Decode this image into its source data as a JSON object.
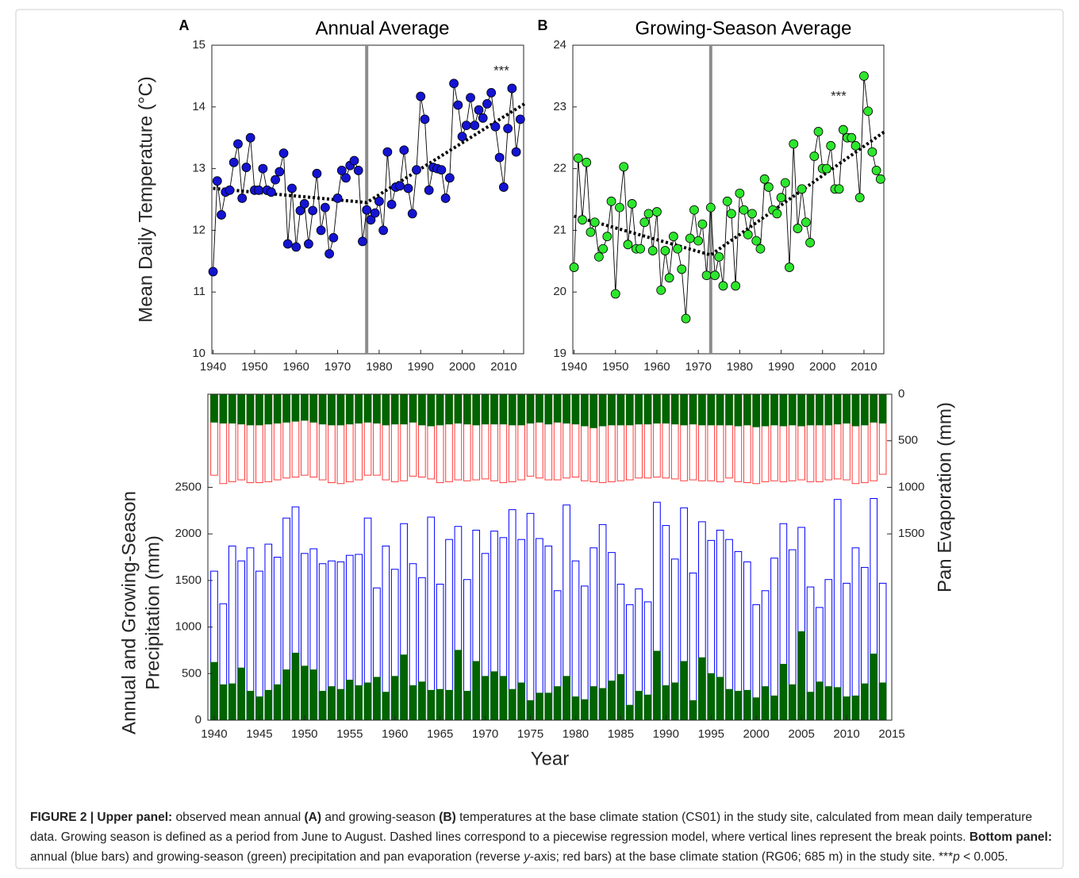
{
  "chart_data": [
    {
      "type": "line",
      "panel": "A",
      "title": "Annual Average",
      "ylabel": "Mean Daily Temperature (°C)",
      "x": [
        1940,
        1941,
        1942,
        1943,
        1944,
        1945,
        1946,
        1947,
        1948,
        1949,
        1950,
        1951,
        1952,
        1953,
        1954,
        1955,
        1956,
        1957,
        1958,
        1959,
        1960,
        1961,
        1962,
        1963,
        1964,
        1965,
        1966,
        1967,
        1968,
        1969,
        1970,
        1971,
        1972,
        1973,
        1974,
        1975,
        1976,
        1977,
        1978,
        1979,
        1980,
        1981,
        1982,
        1983,
        1984,
        1985,
        1986,
        1987,
        1988,
        1989,
        1990,
        1991,
        1992,
        1993,
        1994,
        1995,
        1996,
        1997,
        1998,
        1999,
        2000,
        2001,
        2002,
        2003,
        2004,
        2005,
        2006,
        2007,
        2008,
        2009,
        2010,
        2011,
        2012,
        2013,
        2014
      ],
      "values": [
        11.33,
        12.8,
        12.25,
        12.62,
        12.65,
        13.1,
        13.4,
        12.52,
        13.02,
        13.5,
        12.65,
        12.65,
        13.0,
        12.65,
        12.62,
        12.82,
        12.95,
        13.25,
        11.78,
        12.68,
        11.73,
        12.32,
        12.43,
        11.78,
        12.32,
        12.92,
        12.0,
        12.37,
        11.62,
        11.88,
        12.52,
        12.97,
        12.85,
        13.05,
        13.13,
        12.97,
        11.82,
        12.33,
        12.17,
        12.28,
        12.47,
        12.0,
        13.27,
        12.42,
        12.7,
        12.72,
        13.3,
        12.68,
        12.27,
        12.98,
        14.17,
        13.8,
        12.65,
        13.02,
        13.0,
        12.98,
        12.52,
        12.85,
        14.38,
        14.03,
        13.52,
        13.7,
        14.15,
        13.7,
        13.95,
        13.82,
        14.05,
        14.23,
        13.68,
        13.18,
        12.7,
        13.65,
        14.3,
        13.27,
        13.8
      ],
      "color": "#1414d2",
      "line_color": "#000000",
      "xlim": [
        1939.7,
        2014.8
      ],
      "xticks": [
        1940,
        1950,
        1960,
        1970,
        1980,
        1990,
        2000,
        2010
      ],
      "ylim": [
        10,
        15
      ],
      "yticks": [
        10,
        11,
        12,
        13,
        14,
        15
      ],
      "trend": {
        "x": [
          1940,
          1977,
          2015
        ],
        "values": [
          12.68,
          12.45,
          14.05
        ],
        "color": "#000000"
      },
      "break_x": 1977,
      "break_color": "#8c8c8c",
      "annotation": "***"
    },
    {
      "type": "line",
      "panel": "B",
      "title": "Growing-Season Average",
      "x": [
        1940,
        1941,
        1942,
        1943,
        1944,
        1945,
        1946,
        1947,
        1948,
        1949,
        1950,
        1951,
        1952,
        1953,
        1954,
        1955,
        1956,
        1957,
        1958,
        1959,
        1960,
        1961,
        1962,
        1963,
        1964,
        1965,
        1966,
        1967,
        1968,
        1969,
        1970,
        1971,
        1972,
        1973,
        1974,
        1975,
        1976,
        1977,
        1978,
        1979,
        1980,
        1981,
        1982,
        1983,
        1984,
        1985,
        1986,
        1987,
        1988,
        1989,
        1990,
        1991,
        1992,
        1993,
        1994,
        1995,
        1996,
        1997,
        1998,
        1999,
        2000,
        2001,
        2002,
        2003,
        2004,
        2005,
        2006,
        2007,
        2008,
        2009,
        2010,
        2011,
        2012,
        2013,
        2014
      ],
      "values": [
        20.4,
        22.17,
        21.17,
        22.1,
        20.97,
        21.13,
        20.57,
        20.7,
        20.9,
        21.47,
        19.97,
        21.37,
        22.03,
        20.77,
        21.43,
        20.7,
        20.7,
        21.13,
        21.27,
        20.67,
        21.3,
        20.03,
        20.67,
        20.23,
        20.9,
        20.7,
        20.37,
        19.57,
        20.87,
        21.33,
        20.83,
        21.1,
        20.27,
        21.37,
        20.27,
        20.57,
        20.1,
        21.47,
        21.27,
        20.1,
        21.6,
        21.33,
        20.93,
        21.27,
        20.83,
        20.7,
        21.83,
        21.7,
        21.33,
        21.27,
        21.53,
        21.77,
        20.4,
        22.4,
        21.03,
        21.67,
        21.13,
        20.8,
        22.2,
        22.6,
        22.0,
        22.0,
        22.37,
        21.67,
        21.67,
        22.63,
        22.5,
        22.5,
        22.37,
        21.53,
        23.5,
        22.93,
        22.27,
        21.97,
        21.83
      ],
      "color": "#2ee62e",
      "line_color": "#000000",
      "xlim": [
        1939.7,
        2014.8
      ],
      "xticks": [
        1940,
        1950,
        1960,
        1970,
        1980,
        1990,
        2000,
        2010
      ],
      "ylim": [
        19,
        24
      ],
      "yticks": [
        19,
        20,
        21,
        22,
        23,
        24
      ],
      "trend": {
        "x": [
          1940,
          1973,
          2015
        ],
        "values": [
          21.23,
          20.6,
          22.6
        ],
        "color": "#000000"
      },
      "break_x": 1973,
      "break_color": "#8c8c8c",
      "annotation": "***"
    },
    {
      "type": "bar",
      "ylabel": [
        "Annual and Growing-Season",
        "Precipitation (mm)"
      ],
      "y2label": "Pan Evaporation (mm)",
      "xlabel": "Year",
      "x": [
        1940,
        1941,
        1942,
        1943,
        1944,
        1945,
        1946,
        1947,
        1948,
        1949,
        1950,
        1951,
        1952,
        1953,
        1954,
        1955,
        1956,
        1957,
        1958,
        1959,
        1960,
        1961,
        1962,
        1963,
        1964,
        1965,
        1966,
        1967,
        1968,
        1969,
        1970,
        1971,
        1972,
        1973,
        1974,
        1975,
        1976,
        1977,
        1978,
        1979,
        1980,
        1981,
        1982,
        1983,
        1984,
        1985,
        1986,
        1987,
        1988,
        1989,
        1990,
        1991,
        1992,
        1993,
        1994,
        1995,
        1996,
        1997,
        1998,
        1999,
        2000,
        2001,
        2002,
        2003,
        2004,
        2005,
        2006,
        2007,
        2008,
        2009,
        2010,
        2011,
        2012,
        2013,
        2014
      ],
      "xlim": [
        1939.3,
        2015
      ],
      "xticks": [
        1940,
        1945,
        1950,
        1955,
        1960,
        1965,
        1970,
        1975,
        1980,
        1985,
        1990,
        1995,
        2000,
        2005,
        2010,
        2015
      ],
      "ylim": [
        0,
        3500
      ],
      "yticks": [
        0,
        500,
        1000,
        1500,
        2000,
        2500
      ],
      "y2lim": [
        0,
        3500
      ],
      "y2ticks": [
        0,
        500,
        1000,
        1500
      ],
      "y2_reversed": true,
      "series": [
        {
          "color": "#0000ff",
          "filled": false,
          "values": [
            1600,
            1250,
            1870,
            1710,
            1850,
            1600,
            1890,
            1750,
            2170,
            2290,
            1790,
            1840,
            1680,
            1710,
            1700,
            1770,
            1780,
            2170,
            1420,
            1870,
            1620,
            2110,
            1680,
            1530,
            2180,
            1460,
            1940,
            2080,
            1510,
            2040,
            1790,
            2030,
            1960,
            2260,
            1940,
            2220,
            1950,
            1870,
            1390,
            2310,
            1710,
            1440,
            1850,
            2100,
            1800,
            1460,
            1240,
            1410,
            1270,
            2340,
            2090,
            1730,
            2280,
            1580,
            2130,
            1930,
            2040,
            1940,
            1810,
            1700,
            1240,
            1390,
            1740,
            2110,
            1830,
            2070,
            1430,
            1210,
            1510,
            2370,
            1470,
            1850,
            1640,
            2380,
            1470
          ]
        },
        {
          "color": "#006400",
          "filled": true,
          "values": [
            620,
            380,
            390,
            560,
            310,
            250,
            320,
            380,
            540,
            720,
            580,
            540,
            310,
            360,
            330,
            430,
            370,
            400,
            460,
            300,
            470,
            700,
            370,
            410,
            320,
            330,
            320,
            750,
            310,
            630,
            470,
            520,
            470,
            330,
            400,
            210,
            290,
            290,
            360,
            470,
            250,
            220,
            360,
            340,
            420,
            490,
            160,
            310,
            270,
            740,
            370,
            400,
            630,
            210,
            670,
            500,
            460,
            330,
            310,
            320,
            240,
            360,
            260,
            600,
            380,
            950,
            300,
            410,
            360,
            350,
            250,
            260,
            390,
            710,
            400
          ]
        },
        {
          "color": "#ff3c3c",
          "filled": false,
          "axis": "y2",
          "values": [
            870,
            960,
            940,
            920,
            950,
            950,
            940,
            920,
            900,
            890,
            870,
            890,
            920,
            950,
            960,
            940,
            920,
            870,
            870,
            920,
            940,
            930,
            880,
            890,
            910,
            950,
            940,
            920,
            930,
            920,
            910,
            930,
            950,
            940,
            920,
            880,
            900,
            920,
            920,
            900,
            890,
            930,
            940,
            950,
            940,
            930,
            920,
            900,
            900,
            890,
            900,
            910,
            930,
            920,
            930,
            930,
            940,
            900,
            940,
            950,
            960,
            940,
            930,
            940,
            930,
            920,
            940,
            940,
            920,
            910,
            920,
            960,
            950,
            930,
            860
          ]
        },
        {
          "color": "#006400",
          "filled": true,
          "axis": "y2",
          "values": [
            300,
            310,
            310,
            320,
            330,
            330,
            320,
            310,
            300,
            290,
            280,
            300,
            320,
            330,
            330,
            320,
            310,
            300,
            310,
            330,
            320,
            320,
            300,
            330,
            340,
            330,
            320,
            310,
            320,
            330,
            320,
            320,
            320,
            330,
            330,
            310,
            300,
            320,
            300,
            310,
            320,
            340,
            360,
            340,
            330,
            330,
            330,
            320,
            320,
            310,
            310,
            320,
            330,
            320,
            330,
            330,
            330,
            330,
            340,
            330,
            350,
            340,
            330,
            340,
            330,
            340,
            330,
            330,
            330,
            320,
            310,
            340,
            330,
            300,
            310
          ]
        }
      ]
    }
  ],
  "caption": [
    {
      "text": "FIGURE 2 | Upper panel:",
      "style": "bold"
    },
    {
      "text": " observed mean annual ",
      "style": "normal"
    },
    {
      "text": "(A)",
      "style": "bold"
    },
    {
      "text": " and growing-season ",
      "style": "normal"
    },
    {
      "text": "(B)",
      "style": "bold"
    },
    {
      "text": " temperatures at the base climate station (CS01) in the study site, calculated from mean daily temperature data. Growing season is defined as a period from June to August. Dashed lines correspond to a piecewise regression model, where vertical lines represent the break points. ",
      "style": "normal"
    },
    {
      "text": "Bottom panel:",
      "style": "bold"
    },
    {
      "text": " annual (blue bars) and growing-season (green) precipitation and pan evaporation (reverse ",
      "style": "normal"
    },
    {
      "text": "y",
      "style": "italic"
    },
    {
      "text": "-axis; red bars) at the base climate station (RG06; 685 m) in the study site. ***",
      "style": "normal"
    },
    {
      "text": "p",
      "style": "italic"
    },
    {
      "text": " < 0.005.",
      "style": "normal"
    }
  ]
}
